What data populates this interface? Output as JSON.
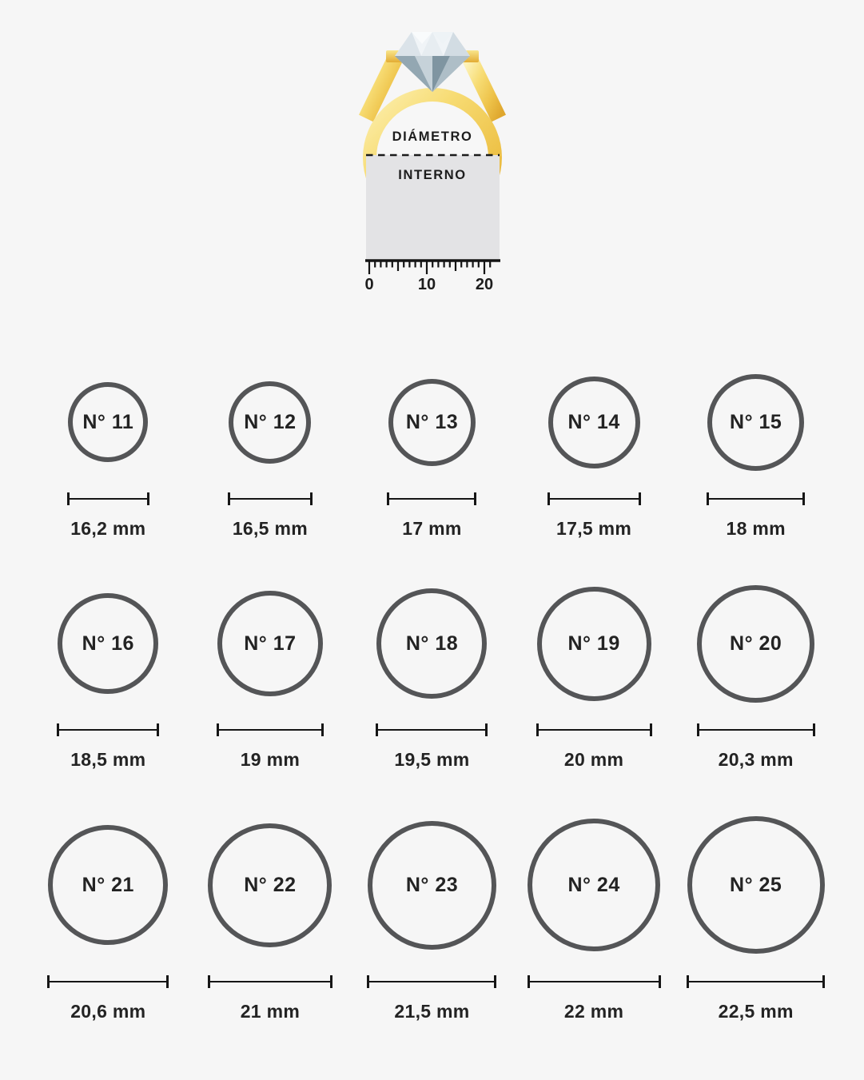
{
  "page": {
    "background": "#f6f6f6",
    "circle_stroke_color": "#545557",
    "text_color": "#232323",
    "gold_color": "#eec34a"
  },
  "ring_diagram": {
    "label_top": "DIÁMETRO",
    "label_bottom": "INTERNO",
    "ruler_labels": [
      "0",
      "10",
      "20"
    ]
  },
  "chart_data": {
    "type": "table",
    "columns": [
      "size_label",
      "inner_diameter_mm"
    ],
    "layout": "3 rows x 5 columns, circle area proportional to diameter",
    "sizes": [
      {
        "label": "N° 11",
        "mm_label": "16,2 mm",
        "mm": 16.2
      },
      {
        "label": "N° 12",
        "mm_label": "16,5 mm",
        "mm": 16.5
      },
      {
        "label": "N° 13",
        "mm_label": "17 mm",
        "mm": 17
      },
      {
        "label": "N° 14",
        "mm_label": "17,5 mm",
        "mm": 17.5
      },
      {
        "label": "N° 15",
        "mm_label": "18 mm",
        "mm": 18
      },
      {
        "label": "N° 16",
        "mm_label": "18,5 mm",
        "mm": 18.5
      },
      {
        "label": "N° 17",
        "mm_label": "19 mm",
        "mm": 19
      },
      {
        "label": "N° 18",
        "mm_label": "19,5 mm",
        "mm": 19.5
      },
      {
        "label": "N° 19",
        "mm_label": "20 mm",
        "mm": 20
      },
      {
        "label": "N° 20",
        "mm_label": "20,3 mm",
        "mm": 20.3
      },
      {
        "label": "N° 21",
        "mm_label": "20,6 mm",
        "mm": 20.6
      },
      {
        "label": "N° 22",
        "mm_label": "21 mm",
        "mm": 21
      },
      {
        "label": "N° 23",
        "mm_label": "21,5 mm",
        "mm": 21.5
      },
      {
        "label": "N° 24",
        "mm_label": "22 mm",
        "mm": 22
      },
      {
        "label": "N° 25",
        "mm_label": "22,5 mm",
        "mm": 22.5
      }
    ]
  }
}
